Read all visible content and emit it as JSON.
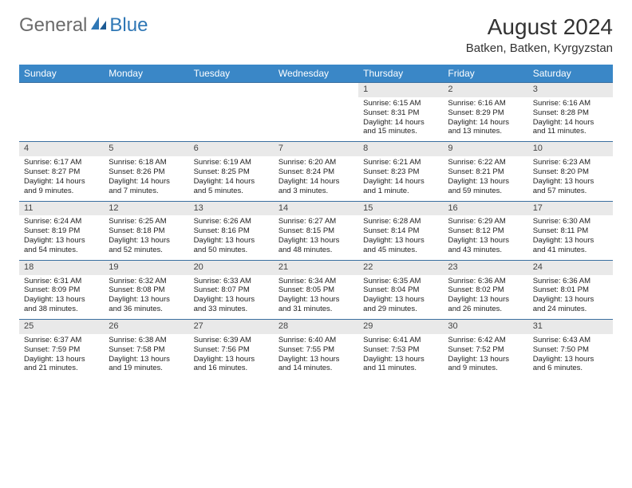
{
  "logo": {
    "text1": "General",
    "text2": "Blue"
  },
  "title": "August 2024",
  "location": "Batken, Batken, Kyrgyzstan",
  "colors": {
    "header_bg": "#3a87c7",
    "header_text": "#ffffff",
    "daynum_bg": "#e9e9e9",
    "border": "#3a6fa0",
    "logo_gray": "#6b6b6b",
    "logo_blue": "#2f77b5"
  },
  "weekdays": [
    "Sunday",
    "Monday",
    "Tuesday",
    "Wednesday",
    "Thursday",
    "Friday",
    "Saturday"
  ],
  "weeks": [
    [
      null,
      null,
      null,
      null,
      {
        "n": "1",
        "sr": "Sunrise: 6:15 AM",
        "ss": "Sunset: 8:31 PM",
        "dl": "Daylight: 14 hours and 15 minutes."
      },
      {
        "n": "2",
        "sr": "Sunrise: 6:16 AM",
        "ss": "Sunset: 8:29 PM",
        "dl": "Daylight: 14 hours and 13 minutes."
      },
      {
        "n": "3",
        "sr": "Sunrise: 6:16 AM",
        "ss": "Sunset: 8:28 PM",
        "dl": "Daylight: 14 hours and 11 minutes."
      }
    ],
    [
      {
        "n": "4",
        "sr": "Sunrise: 6:17 AM",
        "ss": "Sunset: 8:27 PM",
        "dl": "Daylight: 14 hours and 9 minutes."
      },
      {
        "n": "5",
        "sr": "Sunrise: 6:18 AM",
        "ss": "Sunset: 8:26 PM",
        "dl": "Daylight: 14 hours and 7 minutes."
      },
      {
        "n": "6",
        "sr": "Sunrise: 6:19 AM",
        "ss": "Sunset: 8:25 PM",
        "dl": "Daylight: 14 hours and 5 minutes."
      },
      {
        "n": "7",
        "sr": "Sunrise: 6:20 AM",
        "ss": "Sunset: 8:24 PM",
        "dl": "Daylight: 14 hours and 3 minutes."
      },
      {
        "n": "8",
        "sr": "Sunrise: 6:21 AM",
        "ss": "Sunset: 8:23 PM",
        "dl": "Daylight: 14 hours and 1 minute."
      },
      {
        "n": "9",
        "sr": "Sunrise: 6:22 AM",
        "ss": "Sunset: 8:21 PM",
        "dl": "Daylight: 13 hours and 59 minutes."
      },
      {
        "n": "10",
        "sr": "Sunrise: 6:23 AM",
        "ss": "Sunset: 8:20 PM",
        "dl": "Daylight: 13 hours and 57 minutes."
      }
    ],
    [
      {
        "n": "11",
        "sr": "Sunrise: 6:24 AM",
        "ss": "Sunset: 8:19 PM",
        "dl": "Daylight: 13 hours and 54 minutes."
      },
      {
        "n": "12",
        "sr": "Sunrise: 6:25 AM",
        "ss": "Sunset: 8:18 PM",
        "dl": "Daylight: 13 hours and 52 minutes."
      },
      {
        "n": "13",
        "sr": "Sunrise: 6:26 AM",
        "ss": "Sunset: 8:16 PM",
        "dl": "Daylight: 13 hours and 50 minutes."
      },
      {
        "n": "14",
        "sr": "Sunrise: 6:27 AM",
        "ss": "Sunset: 8:15 PM",
        "dl": "Daylight: 13 hours and 48 minutes."
      },
      {
        "n": "15",
        "sr": "Sunrise: 6:28 AM",
        "ss": "Sunset: 8:14 PM",
        "dl": "Daylight: 13 hours and 45 minutes."
      },
      {
        "n": "16",
        "sr": "Sunrise: 6:29 AM",
        "ss": "Sunset: 8:12 PM",
        "dl": "Daylight: 13 hours and 43 minutes."
      },
      {
        "n": "17",
        "sr": "Sunrise: 6:30 AM",
        "ss": "Sunset: 8:11 PM",
        "dl": "Daylight: 13 hours and 41 minutes."
      }
    ],
    [
      {
        "n": "18",
        "sr": "Sunrise: 6:31 AM",
        "ss": "Sunset: 8:09 PM",
        "dl": "Daylight: 13 hours and 38 minutes."
      },
      {
        "n": "19",
        "sr": "Sunrise: 6:32 AM",
        "ss": "Sunset: 8:08 PM",
        "dl": "Daylight: 13 hours and 36 minutes."
      },
      {
        "n": "20",
        "sr": "Sunrise: 6:33 AM",
        "ss": "Sunset: 8:07 PM",
        "dl": "Daylight: 13 hours and 33 minutes."
      },
      {
        "n": "21",
        "sr": "Sunrise: 6:34 AM",
        "ss": "Sunset: 8:05 PM",
        "dl": "Daylight: 13 hours and 31 minutes."
      },
      {
        "n": "22",
        "sr": "Sunrise: 6:35 AM",
        "ss": "Sunset: 8:04 PM",
        "dl": "Daylight: 13 hours and 29 minutes."
      },
      {
        "n": "23",
        "sr": "Sunrise: 6:36 AM",
        "ss": "Sunset: 8:02 PM",
        "dl": "Daylight: 13 hours and 26 minutes."
      },
      {
        "n": "24",
        "sr": "Sunrise: 6:36 AM",
        "ss": "Sunset: 8:01 PM",
        "dl": "Daylight: 13 hours and 24 minutes."
      }
    ],
    [
      {
        "n": "25",
        "sr": "Sunrise: 6:37 AM",
        "ss": "Sunset: 7:59 PM",
        "dl": "Daylight: 13 hours and 21 minutes."
      },
      {
        "n": "26",
        "sr": "Sunrise: 6:38 AM",
        "ss": "Sunset: 7:58 PM",
        "dl": "Daylight: 13 hours and 19 minutes."
      },
      {
        "n": "27",
        "sr": "Sunrise: 6:39 AM",
        "ss": "Sunset: 7:56 PM",
        "dl": "Daylight: 13 hours and 16 minutes."
      },
      {
        "n": "28",
        "sr": "Sunrise: 6:40 AM",
        "ss": "Sunset: 7:55 PM",
        "dl": "Daylight: 13 hours and 14 minutes."
      },
      {
        "n": "29",
        "sr": "Sunrise: 6:41 AM",
        "ss": "Sunset: 7:53 PM",
        "dl": "Daylight: 13 hours and 11 minutes."
      },
      {
        "n": "30",
        "sr": "Sunrise: 6:42 AM",
        "ss": "Sunset: 7:52 PM",
        "dl": "Daylight: 13 hours and 9 minutes."
      },
      {
        "n": "31",
        "sr": "Sunrise: 6:43 AM",
        "ss": "Sunset: 7:50 PM",
        "dl": "Daylight: 13 hours and 6 minutes."
      }
    ]
  ]
}
